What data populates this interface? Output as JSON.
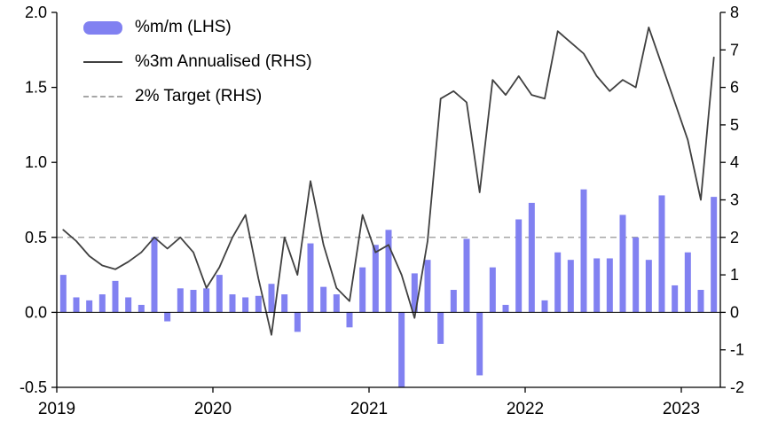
{
  "chart_data": {
    "type": "bar",
    "title": "",
    "x_tick_labels": [
      "2019",
      "2020",
      "2021",
      "2022",
      "2023"
    ],
    "x_tick_month_indices": [
      0,
      12,
      24,
      36,
      48
    ],
    "months_start": "2019-01",
    "months_end": "2023-03",
    "left_axis": {
      "min": -0.5,
      "max": 2.0,
      "ticks": [
        2.0,
        1.5,
        1.0,
        0.5,
        0.0,
        -0.5
      ],
      "tick_labels": [
        "2.0",
        "1.5",
        "1.0",
        "0.5",
        "0.0",
        "-0.5"
      ]
    },
    "right_axis": {
      "min": -2,
      "max": 8,
      "ticks": [
        8,
        7,
        6,
        5,
        4,
        3,
        2,
        1,
        0,
        -1,
        -2
      ],
      "tick_labels": [
        "8",
        "7",
        "6",
        "5",
        "4",
        "3",
        "2",
        "1",
        "0",
        "-1",
        "-2"
      ]
    },
    "legend_position": "top-left",
    "grid": false,
    "series": [
      {
        "name": "%m/m (LHS)",
        "type": "bar",
        "axis": "left",
        "color": "#8181f1",
        "values": [
          0.25,
          0.1,
          0.08,
          0.12,
          0.21,
          0.1,
          0.05,
          0.5,
          -0.06,
          0.16,
          0.15,
          0.16,
          0.25,
          0.12,
          0.1,
          0.11,
          0.19,
          0.12,
          -0.13,
          0.46,
          0.17,
          0.12,
          -0.1,
          0.3,
          0.45,
          0.55,
          -0.5,
          0.26,
          0.35,
          -0.21,
          0.15,
          0.49,
          -0.42,
          0.3,
          0.05,
          0.62,
          0.73,
          0.08,
          0.4,
          0.35,
          0.82,
          0.36,
          0.36,
          0.65,
          0.5,
          0.35,
          0.78,
          0.18,
          0.4,
          0.15,
          0.77
        ]
      },
      {
        "name": "%3m Annualised (RHS)",
        "type": "line",
        "axis": "right",
        "color": "#404040",
        "values": [
          2.2,
          1.9,
          1.5,
          1.25,
          1.15,
          1.35,
          1.6,
          2.0,
          1.7,
          2.0,
          1.6,
          0.65,
          1.2,
          2.0,
          2.6,
          0.9,
          -0.6,
          2.0,
          1.0,
          3.5,
          1.8,
          0.65,
          0.3,
          2.6,
          1.6,
          1.8,
          1.0,
          -0.15,
          1.9,
          5.7,
          5.9,
          5.6,
          3.2,
          6.2,
          5.8,
          6.3,
          5.8,
          5.7,
          7.5,
          7.2,
          6.9,
          6.3,
          5.9,
          6.2,
          6.0,
          7.6,
          6.6,
          5.6,
          4.6,
          3.0,
          6.8
        ]
      },
      {
        "name": "2% Target (RHS)",
        "type": "dashed-line",
        "axis": "right",
        "color": "#a6a6a6",
        "value": 2
      }
    ]
  }
}
